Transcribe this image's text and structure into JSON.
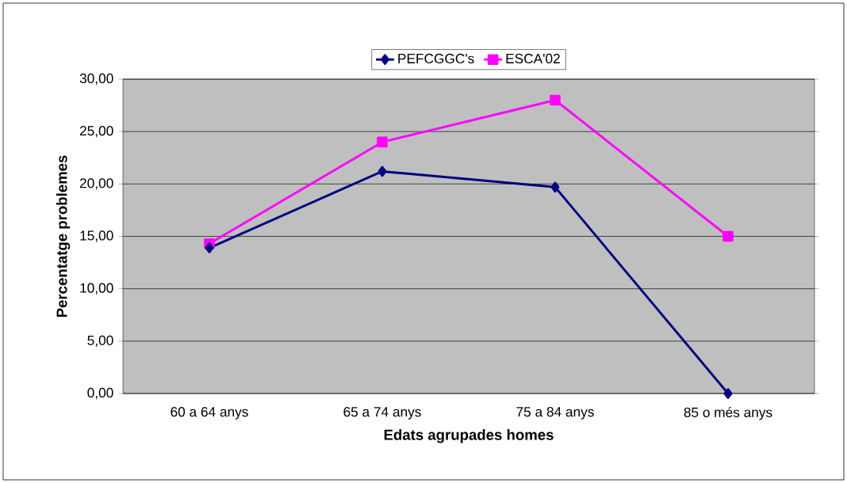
{
  "chart_data": {
    "type": "line",
    "xlabel": "Edats agrupades homes",
    "ylabel": "Percentatge problemes",
    "categories": [
      "60 a 64 anys",
      "65 a 74 anys",
      "75 a 84 anys",
      "85 o més anys"
    ],
    "series": [
      {
        "name": "PEFCGGC's",
        "color": "#000080",
        "marker": "diamond",
        "values": [
          13.9,
          21.2,
          19.7,
          0
        ]
      },
      {
        "name": "ESCA'02",
        "color": "#ff00ff",
        "marker": "square",
        "values": [
          14.3,
          24.0,
          28.0,
          15.0
        ]
      }
    ],
    "ylim": [
      0,
      30
    ],
    "yticks": [
      {
        "value": 0,
        "label": "0,00"
      },
      {
        "value": 5,
        "label": "5,00"
      },
      {
        "value": 10,
        "label": "10,00"
      },
      {
        "value": 15,
        "label": "15,00"
      },
      {
        "value": 20,
        "label": "20,00"
      },
      {
        "value": 25,
        "label": "25,00"
      },
      {
        "value": 30,
        "label": "30,00"
      }
    ],
    "grid": "y",
    "legend": "top"
  }
}
